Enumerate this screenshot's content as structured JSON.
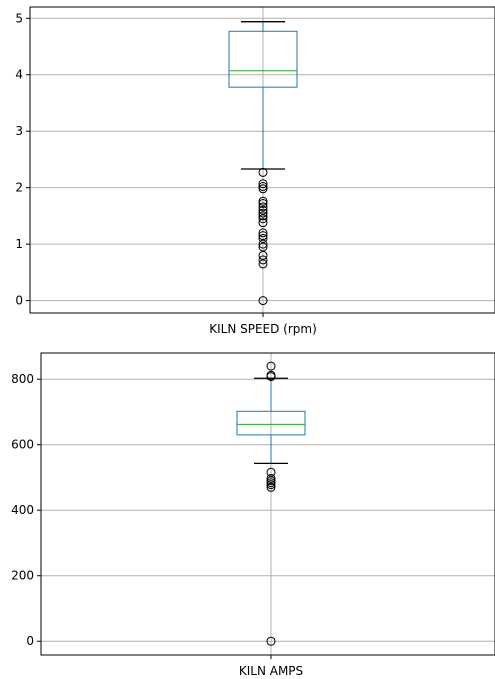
{
  "chart_data": [
    {
      "type": "box",
      "category": "KILN SPEED (rpm)",
      "xlabel": "KILN SPEED (rpm)",
      "ylim": [
        -0.22,
        5.2
      ],
      "yticks": [
        0,
        1,
        2,
        3,
        4,
        5
      ],
      "grid": true,
      "box": {
        "q1": 3.78,
        "median": 4.07,
        "q3": 4.77,
        "whisker_low": 2.33,
        "whisker_high": 4.94
      },
      "outliers": [
        2.27,
        2.07,
        2.02,
        1.98,
        1.76,
        1.72,
        1.66,
        1.6,
        1.55,
        1.5,
        1.45,
        1.38,
        1.2,
        1.15,
        1.1,
        1.0,
        0.95,
        0.8,
        0.72,
        0.65,
        0.0
      ]
    },
    {
      "type": "box",
      "category": "KILN AMPS",
      "xlabel": "KILN AMPS",
      "ylim": [
        -42,
        880
      ],
      "yticks": [
        0,
        200,
        400,
        600,
        800
      ],
      "grid": true,
      "box": {
        "q1": 630,
        "median": 662,
        "q3": 702,
        "whisker_low": 543,
        "whisker_high": 803
      },
      "outliers": [
        840,
        812,
        808,
        516,
        497,
        490,
        484,
        478,
        470,
        0
      ]
    }
  ],
  "colors": {
    "box": "#1f77b4",
    "median": "#2ca02c",
    "whisker": "#000000",
    "outlier_edge": "#000000",
    "grid": "#b0b0b0",
    "axis": "#000000"
  }
}
